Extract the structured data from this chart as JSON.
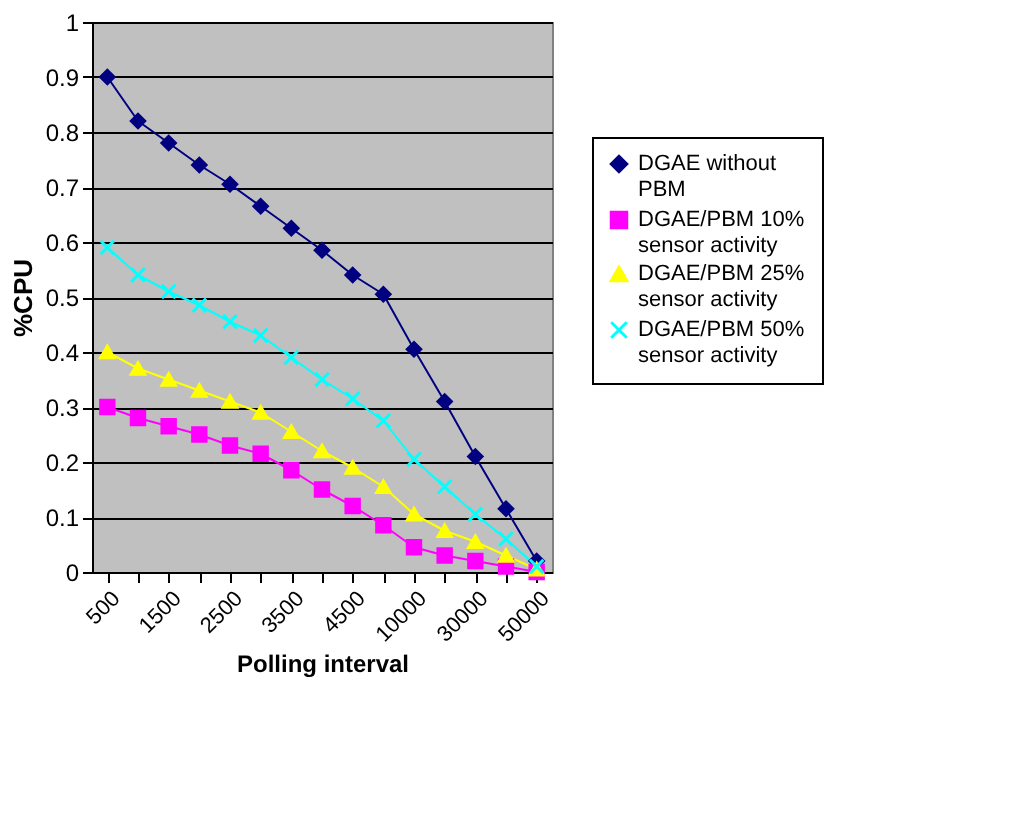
{
  "chart_data": {
    "type": "line",
    "xlabel": "Polling interval",
    "ylabel": "%CPU",
    "categories": [
      "500",
      null,
      "1500",
      null,
      "2500",
      null,
      "3500",
      null,
      "4500",
      null,
      "10000",
      null,
      "30000",
      null,
      "50000"
    ],
    "series": [
      {
        "name": "DGAE without PBM",
        "color": "#000080",
        "marker": "diamond",
        "values": [
          0.9,
          0.82,
          0.78,
          0.74,
          0.705,
          0.665,
          0.625,
          0.585,
          0.54,
          0.505,
          0.405,
          0.31,
          0.21,
          0.115,
          0.02
        ]
      },
      {
        "name": "DGAE/PBM 10% sensor activity",
        "color": "#ff00ff",
        "marker": "square",
        "values": [
          0.3,
          0.28,
          0.265,
          0.25,
          0.23,
          0.215,
          0.185,
          0.15,
          0.12,
          0.085,
          0.045,
          0.03,
          0.02,
          0.01,
          0.0
        ]
      },
      {
        "name": "DGAE/PBM 25% sensor activity",
        "color": "#ffff00",
        "marker": "triangle",
        "values": [
          0.4,
          0.37,
          0.35,
          0.33,
          0.31,
          0.29,
          0.255,
          0.22,
          0.19,
          0.155,
          0.105,
          0.075,
          0.055,
          0.03,
          0.005
        ]
      },
      {
        "name": "DGAE/PBM 50% sensor activity",
        "color": "#00ffff",
        "marker": "cross",
        "values": [
          0.59,
          0.54,
          0.51,
          0.485,
          0.455,
          0.43,
          0.39,
          0.35,
          0.315,
          0.275,
          0.205,
          0.155,
          0.105,
          0.06,
          0.01
        ]
      }
    ],
    "ylim": [
      0,
      1
    ],
    "yticks": [
      0,
      0.1,
      0.2,
      0.3,
      0.4,
      0.5,
      0.6,
      0.7,
      0.8,
      0.9,
      1
    ],
    "grid": "y",
    "legend": "right",
    "line_style": "solid"
  }
}
